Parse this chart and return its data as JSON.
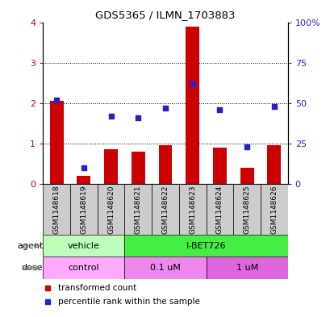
{
  "title": "GDS5365 / ILMN_1703883",
  "samples": [
    "GSM1148618",
    "GSM1148619",
    "GSM1148620",
    "GSM1148621",
    "GSM1148622",
    "GSM1148623",
    "GSM1148624",
    "GSM1148625",
    "GSM1148626"
  ],
  "red_values": [
    2.05,
    0.2,
    0.85,
    0.8,
    0.95,
    3.9,
    0.9,
    0.4,
    0.95
  ],
  "blue_values": [
    52,
    10,
    42,
    41,
    47,
    62,
    46,
    23,
    48
  ],
  "ylim_left": [
    0,
    4
  ],
  "ylim_right": [
    0,
    100
  ],
  "yticks_left": [
    0,
    1,
    2,
    3,
    4
  ],
  "yticks_right": [
    0,
    25,
    50,
    75,
    100
  ],
  "yticklabels_right": [
    "0",
    "25",
    "50",
    "75",
    "100%"
  ],
  "red_color": "#cc0000",
  "blue_color": "#2222cc",
  "agent_labels": [
    {
      "label": "vehicle",
      "start": 0,
      "end": 3,
      "color": "#bbffbb"
    },
    {
      "label": "I-BET726",
      "start": 3,
      "end": 9,
      "color": "#44ee44"
    }
  ],
  "dose_labels": [
    {
      "label": "control",
      "start": 0,
      "end": 3,
      "color": "#ffaaff"
    },
    {
      "label": "0.1 uM",
      "start": 3,
      "end": 6,
      "color": "#ee88ee"
    },
    {
      "label": "1 uM",
      "start": 6,
      "end": 9,
      "color": "#dd66dd"
    }
  ],
  "legend_red": "transformed count",
  "legend_blue": "percentile rank within the sample",
  "sample_box_color": "#cccccc",
  "bar_width": 0.5
}
